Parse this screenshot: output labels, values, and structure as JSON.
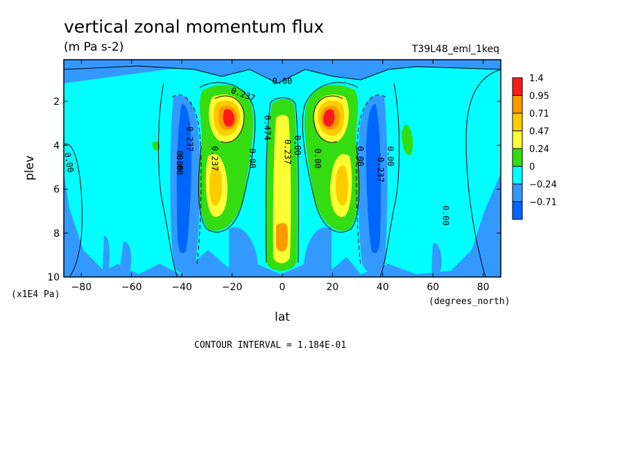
{
  "chart_data": {
    "type": "heatmap",
    "title": "vertical zonal momentum flux",
    "units": "(m Pa s-2)",
    "dataset": "T39L48_eml_1keq",
    "xlabel": "lat",
    "x_units": "(degrees_north)",
    "ylabel": "plev",
    "y_units": "(x1E4 Pa)",
    "xlim": [
      -87,
      87
    ],
    "ylim": [
      10,
      0.1
    ],
    "x_ticks": [
      -80,
      -60,
      -40,
      -20,
      0,
      20,
      40,
      60,
      80
    ],
    "x_tick_labels": [
      "-80",
      "-60",
      "-40",
      "-20",
      "0",
      "20",
      "40",
      "60",
      "80"
    ],
    "y_ticks": [
      2,
      4,
      6,
      8,
      10
    ],
    "y_tick_labels": [
      "2",
      "4",
      "6",
      "8",
      "10"
    ],
    "footer": "CONTOUR INTERVAL = 1.184E-01",
    "legend": {
      "placement": "right",
      "levels": [
        "1.4",
        "0.95",
        "0.71",
        "0.47",
        "0.24",
        "0",
        "-0.24",
        "-0.71"
      ],
      "colors": [
        "#ff1a1a",
        "#ff9900",
        "#ffcc00",
        "#ffff33",
        "#33dd11",
        "#00ffff",
        "#3399ff",
        "#0066ff"
      ]
    },
    "features": [
      {
        "type": "max",
        "x": -21,
        "y": 2.8,
        "value": 1.4
      },
      {
        "type": "max",
        "x": 21,
        "y": 2.8,
        "value": 1.4
      },
      {
        "type": "max",
        "x": 0,
        "y": 8.2,
        "value": 0.95
      },
      {
        "type": "max",
        "x": -27,
        "y": 5.6,
        "value": 0.71
      },
      {
        "type": "max",
        "x": 27,
        "y": 5.6,
        "value": 0.71
      },
      {
        "type": "min",
        "x": -37,
        "y": 6.0,
        "value": -0.71
      },
      {
        "type": "min",
        "x": 37,
        "y": 6.0,
        "value": -0.71
      }
    ],
    "contour_labels": [
      "0.00",
      "-0.237",
      "0.00",
      "0.237",
      "0.237",
      "0.474",
      "0.00",
      "0.237",
      "0.00",
      "0.00",
      "-0.237",
      "0.00",
      "0.00",
      "0.00",
      "0.00",
      "0.00"
    ]
  }
}
